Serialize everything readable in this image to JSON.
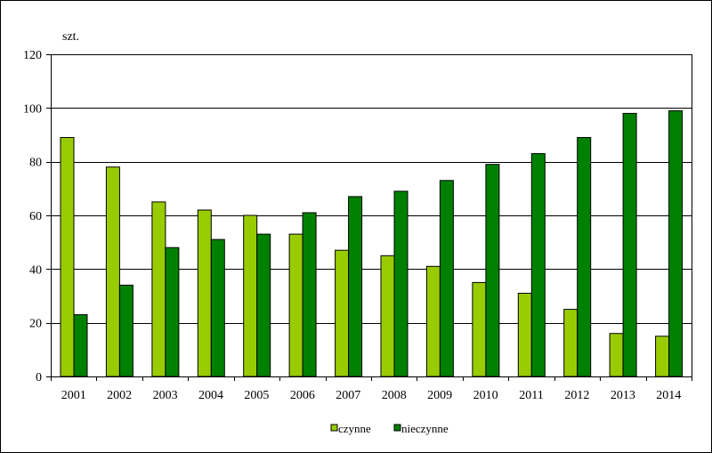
{
  "chart_data": {
    "type": "bar",
    "ylabel": "szt.",
    "ylim": [
      0,
      120
    ],
    "yticks": [
      0,
      20,
      40,
      60,
      80,
      100,
      120
    ],
    "grid": true,
    "legend_position": "bottom",
    "categories": [
      "2001",
      "2002",
      "2003",
      "2004",
      "2005",
      "2006",
      "2007",
      "2008",
      "2009",
      "2010",
      "2011",
      "2012",
      "2013",
      "2014"
    ],
    "series": [
      {
        "name": "czynne",
        "color": "#99cc00",
        "values": [
          89,
          78,
          65,
          62,
          60,
          53,
          47,
          45,
          41,
          35,
          31,
          25,
          16,
          15
        ]
      },
      {
        "name": "nieczynne",
        "color": "#008000",
        "values": [
          23,
          34,
          48,
          51,
          53,
          61,
          67,
          69,
          73,
          79,
          83,
          89,
          98,
          99
        ]
      }
    ]
  }
}
